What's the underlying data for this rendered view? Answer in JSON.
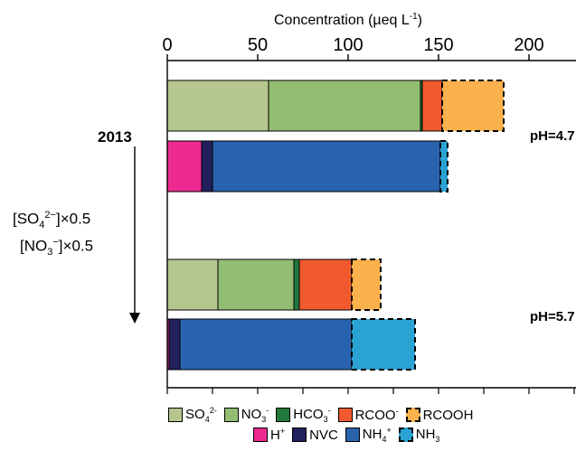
{
  "chart_data": {
    "type": "bar",
    "orientation": "horizontal-stacked",
    "xlabel_main": "Concentration (µeq L",
    "xlabel_sup": "-1",
    "xlabel_end": ")",
    "xlim": [
      0,
      225
    ],
    "xticks": [
      0,
      50,
      100,
      150,
      200
    ],
    "xtick_labels": [
      "0",
      "50",
      "100",
      "150",
      "200"
    ],
    "grid": false,
    "groups": [
      {
        "label": "2013",
        "ph_label": "pH=4.7",
        "bars": [
          {
            "kind": "anions",
            "segments": [
              {
                "species": "SO4",
                "value": 56,
                "color": "#b5c78f",
                "dashed": false
              },
              {
                "species": "NO3",
                "value": 84,
                "color": "#93bd72",
                "dashed": false
              },
              {
                "species": "HCO3",
                "value": 1,
                "color": "#207a3c",
                "dashed": false
              },
              {
                "species": "RCOO",
                "value": 11,
                "color": "#f15a2f",
                "dashed": false
              },
              {
                "species": "RCOOH",
                "value": 34,
                "color": "#fbb24d",
                "dashed": true
              }
            ]
          },
          {
            "kind": "cations",
            "segments": [
              {
                "species": "H",
                "value": 19,
                "color": "#ec2a90",
                "dashed": false
              },
              {
                "species": "NVC",
                "value": 6,
                "color": "#23205e",
                "dashed": false
              },
              {
                "species": "NH4",
                "value": 126,
                "color": "#2a63ad",
                "dashed": false
              },
              {
                "species": "NH3",
                "value": 4,
                "color": "#2aa2d4",
                "dashed": true
              }
            ]
          }
        ]
      },
      {
        "label": "",
        "ph_label": "pH=5.7",
        "bars": [
          {
            "kind": "anions",
            "segments": [
              {
                "species": "SO4",
                "value": 28,
                "color": "#b5c78f",
                "dashed": false
              },
              {
                "species": "NO3",
                "value": 42,
                "color": "#93bd72",
                "dashed": false
              },
              {
                "species": "HCO3",
                "value": 3,
                "color": "#207a3c",
                "dashed": false
              },
              {
                "species": "RCOO",
                "value": 29,
                "color": "#f15a2f",
                "dashed": false
              },
              {
                "species": "RCOOH",
                "value": 16,
                "color": "#fbb24d",
                "dashed": true
              }
            ]
          },
          {
            "kind": "cations",
            "segments": [
              {
                "species": "H",
                "value": 1,
                "color": "#ec2a90",
                "dashed": false
              },
              {
                "species": "NVC",
                "value": 6,
                "color": "#23205e",
                "dashed": false
              },
              {
                "species": "NH4",
                "value": 95,
                "color": "#2a63ad",
                "dashed": false
              },
              {
                "species": "NH3",
                "value": 35,
                "color": "#2aa2d4",
                "dashed": true
              }
            ]
          }
        ]
      }
    ],
    "annotation": {
      "so4_text": "[SO",
      "so4_sub": "4",
      "so4_sup": "2−",
      "so4_end": "]×0.5",
      "no3_text": "[NO",
      "no3_sub": "3",
      "no3_sup": "−",
      "no3_end": "]×0.5"
    },
    "legend_placement": "bottom",
    "legend": [
      {
        "species": "SO4",
        "text": "SO",
        "sub": "4",
        "sup": "2-",
        "color": "#b5c78f",
        "dashed": false,
        "row": 0
      },
      {
        "species": "NO3",
        "text": "NO",
        "sub": "3",
        "sup": "-",
        "color": "#93bd72",
        "dashed": false,
        "row": 0
      },
      {
        "species": "HCO3",
        "text": "HCO",
        "sub": "3",
        "sup": "-",
        "color": "#207a3c",
        "dashed": false,
        "row": 0
      },
      {
        "species": "RCOO",
        "text": "RCOO",
        "sub": "",
        "sup": "-",
        "color": "#f15a2f",
        "dashed": false,
        "row": 0
      },
      {
        "species": "RCOOH",
        "text": "RCOOH",
        "sub": "",
        "sup": "",
        "color": "#fbb24d",
        "dashed": true,
        "row": 0
      },
      {
        "species": "H",
        "text": "H",
        "sub": "",
        "sup": "+",
        "color": "#ec2a90",
        "dashed": false,
        "row": 1
      },
      {
        "species": "NVC",
        "text": "NVC",
        "sub": "",
        "sup": "",
        "color": "#23205e",
        "dashed": false,
        "row": 1
      },
      {
        "species": "NH4",
        "text": "NH",
        "sub": "4",
        "sup": "+",
        "color": "#2a63ad",
        "dashed": false,
        "row": 1
      },
      {
        "species": "NH3",
        "text": "NH",
        "sub": "3",
        "sup": "",
        "color": "#2aa2d4",
        "dashed": true,
        "row": 1
      }
    ]
  }
}
